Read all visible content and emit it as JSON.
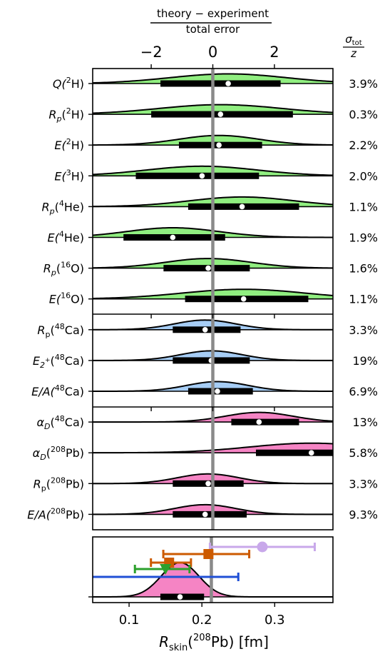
{
  "chart_data": [
    {
      "type": "violin",
      "title_numerator": "theory − experiment",
      "title_denominator": "total error",
      "x_ticks": [
        -2,
        0,
        2
      ],
      "x_tick_labels": [
        "−2",
        "0",
        "2"
      ],
      "xlim": [
        -3.9,
        3.9
      ],
      "right_header_num": "σ",
      "right_header_num_sub": "tot",
      "right_header_den": "z",
      "colors": {
        "green": "#90ee80",
        "blue": "#a6cdf5",
        "pink": "#f584c4",
        "refline": "#8a8a8a"
      },
      "rows": [
        {
          "group": "green",
          "base": "Q(",
          "iso": "2",
          "el": "H)",
          "median": 0.5,
          "iqr": [
            -1.7,
            2.2
          ],
          "spread": 1.9,
          "err": "3.9%"
        },
        {
          "group": "green",
          "base": "R",
          "sub": "p",
          "after": "(",
          "iso": "2",
          "el": "H)",
          "median": 0.25,
          "iqr": [
            -2.0,
            2.6
          ],
          "spread": 2.0,
          "err": "0.3%"
        },
        {
          "group": "green",
          "base": "E(",
          "iso": "2",
          "el": "H)",
          "median": 0.2,
          "iqr": [
            -1.1,
            1.6
          ],
          "spread": 1.3,
          "err": "2.2%"
        },
        {
          "group": "green",
          "base": "E(",
          "iso": "3",
          "el": "H)",
          "median": -0.35,
          "iqr": [
            -2.5,
            1.5
          ],
          "spread": 1.8,
          "err": "2.0%"
        },
        {
          "group": "green",
          "base": "R",
          "sub": "p",
          "after": "(",
          "iso": "4",
          "el": "He)",
          "median": 0.95,
          "iqr": [
            -0.8,
            2.8
          ],
          "spread": 1.7,
          "err": "1.1%"
        },
        {
          "group": "green",
          "base": "E(",
          "iso": "4",
          "el": "He)",
          "median": -1.3,
          "iqr": [
            -2.9,
            0.4
          ],
          "spread": 1.5,
          "err": "1.9%"
        },
        {
          "group": "green",
          "base": "R",
          "sub": "p",
          "after": "(",
          "iso": "16",
          "el": "O)",
          "median": -0.15,
          "iqr": [
            -1.6,
            1.2
          ],
          "spread": 1.4,
          "err": "1.6%"
        },
        {
          "group": "green",
          "base": "E(",
          "iso": "16",
          "el": "O)",
          "median": 1.0,
          "iqr": [
            -0.9,
            3.1
          ],
          "spread": 2.0,
          "err": "1.1%"
        },
        {
          "group": "blue",
          "base": "R",
          "sub": "p",
          "after": "(",
          "iso": "48",
          "el": "Ca)",
          "median": -0.25,
          "iqr": [
            -1.3,
            0.9
          ],
          "spread": 1.0,
          "err": "3.3%"
        },
        {
          "group": "blue",
          "base": "E",
          "sub": "2",
          "subsup": "+",
          "after": "(",
          "iso": "48",
          "el": "Ca)",
          "median": -0.05,
          "iqr": [
            -1.3,
            1.2
          ],
          "spread": 1.0,
          "err": "19%"
        },
        {
          "group": "blue",
          "base": "E/A(",
          "iso": "48",
          "el": "Ca)",
          "median": 0.15,
          "iqr": [
            -0.8,
            1.3
          ],
          "spread": 1.0,
          "err": "6.9%"
        },
        {
          "group": "pink",
          "base": "α",
          "sub": "D",
          "after": "(",
          "iso": "48",
          "el": "Ca)",
          "median": 1.5,
          "iqr": [
            0.6,
            2.8
          ],
          "spread": 1.1,
          "err": "13%"
        },
        {
          "group": "pink",
          "base": "α",
          "sub": "D",
          "after": "(",
          "iso": "208",
          "el": "Pb)",
          "median": 3.2,
          "iqr": [
            1.4,
            5.2
          ],
          "spread": 2.0,
          "err": "5.8%"
        },
        {
          "group": "pink",
          "base": "R",
          "sub": "p",
          "after": "(",
          "iso": "208",
          "el": "Pb)",
          "median": -0.15,
          "iqr": [
            -1.3,
            1.0
          ],
          "spread": 1.0,
          "err": "3.3%"
        },
        {
          "group": "pink",
          "base": "E/A(",
          "iso": "208",
          "el": "Pb)",
          "median": -0.25,
          "iqr": [
            -1.3,
            1.1
          ],
          "spread": 1.0,
          "err": "9.3%"
        }
      ]
    },
    {
      "type": "violin+errorbar",
      "xlabel_base": "R",
      "xlabel_sub": "skin",
      "xlabel_iso": "208",
      "xlabel_rest": "Pb) [fm]",
      "x_ticks": [
        0.1,
        0.2,
        0.3
      ],
      "x_tick_labels": [
        "0.1",
        "0.2",
        "0.3"
      ],
      "xlim": [
        0.05,
        0.38
      ],
      "reference_x": 0.213,
      "violin": {
        "median": 0.17,
        "iqr": [
          0.143,
          0.203
        ],
        "spread": 0.026,
        "color": "#f584c4"
      },
      "error_bars": [
        {
          "color": "#c8a8ea",
          "marker": "circle",
          "x": 0.283,
          "xmin": 0.211,
          "xmax": 0.355
        },
        {
          "color": "#cc5a00",
          "marker": "square",
          "x": 0.209,
          "xmin": 0.147,
          "xmax": 0.265
        },
        {
          "color": "#cc5a00",
          "marker": "square",
          "x": 0.155,
          "xmin": 0.13,
          "xmax": 0.185
        },
        {
          "color": "#2ca02c",
          "marker": "triangle-down",
          "x": 0.15,
          "xmin": 0.108,
          "xmax": 0.183
        },
        {
          "color": "#1f4fd6",
          "marker": "none",
          "x": 0.14,
          "xmin": 0.03,
          "xmax": 0.25
        }
      ]
    }
  ]
}
